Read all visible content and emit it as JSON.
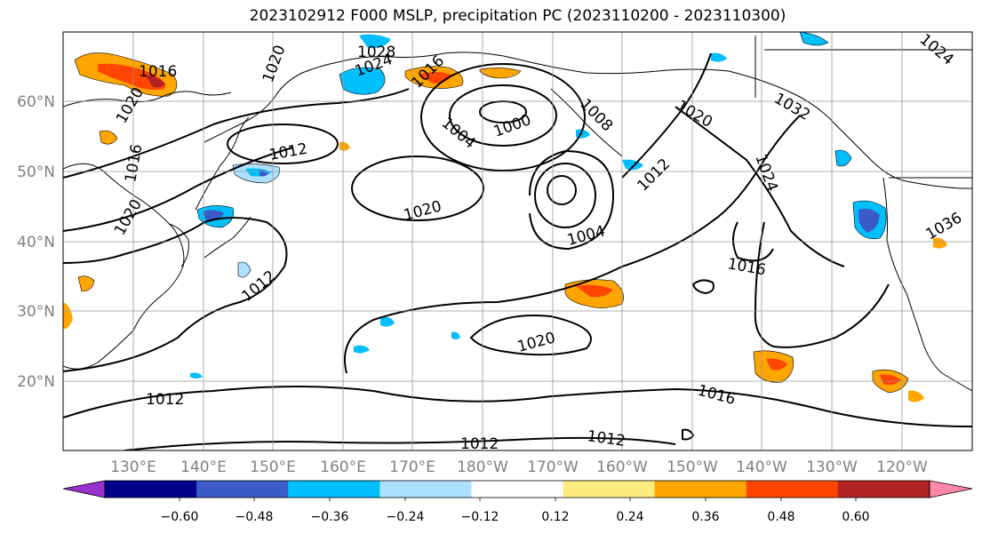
{
  "title": "2023102912 F000 MSLP, precipitation PC (2023110200 - 2023110300)",
  "lat_labels": [
    "60°N",
    "50°N",
    "40°N",
    "30°N",
    "20°N"
  ],
  "lon_labels": [
    "130°E",
    "140°E",
    "150°E",
    "160°E",
    "170°E",
    "180°W",
    "170°W",
    "160°W",
    "150°W",
    "140°W",
    "130°W",
    "120°W"
  ],
  "colorbar": {
    "colors": [
      "#9932CC",
      "#00008B",
      "#3A5BC8",
      "#00BFFF",
      "#ADDFFF",
      "#FFFFFF",
      "#FFEB80",
      "#FFA500",
      "#FF4500",
      "#B22222",
      "#FF88AA"
    ],
    "ticks": [
      "−0.60",
      "−0.48",
      "−0.36",
      "−0.24",
      "−0.12",
      "0.12",
      "0.24",
      "0.36",
      "0.48",
      "0.60"
    ]
  },
  "isobar_labels": [
    "1016",
    "1020",
    "1016",
    "1020",
    "1012",
    "1020",
    "1028",
    "1024",
    "1016",
    "1004",
    "1000",
    "1008",
    "1020",
    "1032",
    "1024",
    "1012",
    "1020",
    "1004",
    "1016",
    "1012",
    "1020",
    "1016",
    "1012",
    "1012",
    "1012",
    "1036",
    "1024"
  ]
}
